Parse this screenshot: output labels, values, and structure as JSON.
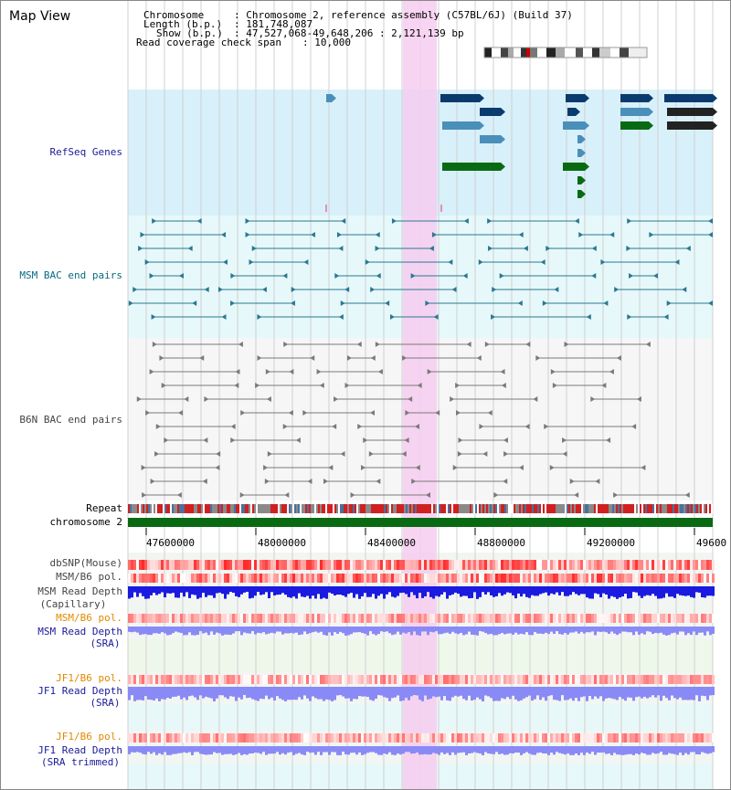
{
  "header": {
    "title": "Map View",
    "chromosome_key": "Chromosome",
    "chromosome_value": ": Chromosome 2, reference assembly (C57BL/6J) (Build 37)",
    "length_key": "Length (b.p.)",
    "length_value": ": 181,748,087",
    "show_key": "Show (b.p.)",
    "show_value": ": 47,527,068-49,648,206 : 2,121,139 bp",
    "coverage_key": "Read coverage check span",
    "coverage_value": ": 10,000"
  },
  "tracks": {
    "refseq": "RefSeq Genes",
    "msm_bac": "MSM BAC end pairs",
    "b6n_bac": "B6N BAC end pairs",
    "repeat": "Repeat",
    "chromosome": "chromosome 2",
    "dbsnp": "dbSNP(Mouse)",
    "msm_b6_pol": "MSM/B6 pol.",
    "msm_read_depth_cap_1": "MSM Read Depth",
    "msm_read_depth_cap_2": "(Capillary)",
    "msm_b6_pol_2": "MSM/B6 pol.",
    "msm_read_depth_sra_1": "MSM Read Depth",
    "msm_read_depth_sra_2": "(SRA)",
    "jf1_b6_pol": "JF1/B6 pol.",
    "jf1_read_depth_sra_1": "JF1 Read Depth",
    "jf1_read_depth_sra_2": "(SRA)",
    "jf1_b6_pol_2": "JF1/B6 pol.",
    "jf1_read_depth_trim_1": "JF1 Read Depth",
    "jf1_read_depth_trim_2": "(SRA trimmed)"
  },
  "axis": {
    "ticks": [
      "47600000",
      "48000000",
      "48400000",
      "48800000",
      "49200000",
      "49600"
    ]
  },
  "colors": {
    "refseq_bg": "#d8f0fa",
    "msm_bg": "#e6f8fa",
    "b6n_bg": "#f6f6f6",
    "highlight": "#f6ccf0",
    "gene_dark": "#0a3a6e",
    "gene_mid": "#4a8fba",
    "gene_green": "#0a6a14",
    "msm_line": "#2a7890",
    "b6n_line": "#7a7a7a",
    "chromosome_bar": "#0a6a14",
    "label_navy": "#1a1a9a",
    "label_teal": "#0a6a80",
    "label_orange": "#e08a00",
    "depth_blue": "#1a1ae0",
    "depth_light": "#8a8af6"
  }
}
